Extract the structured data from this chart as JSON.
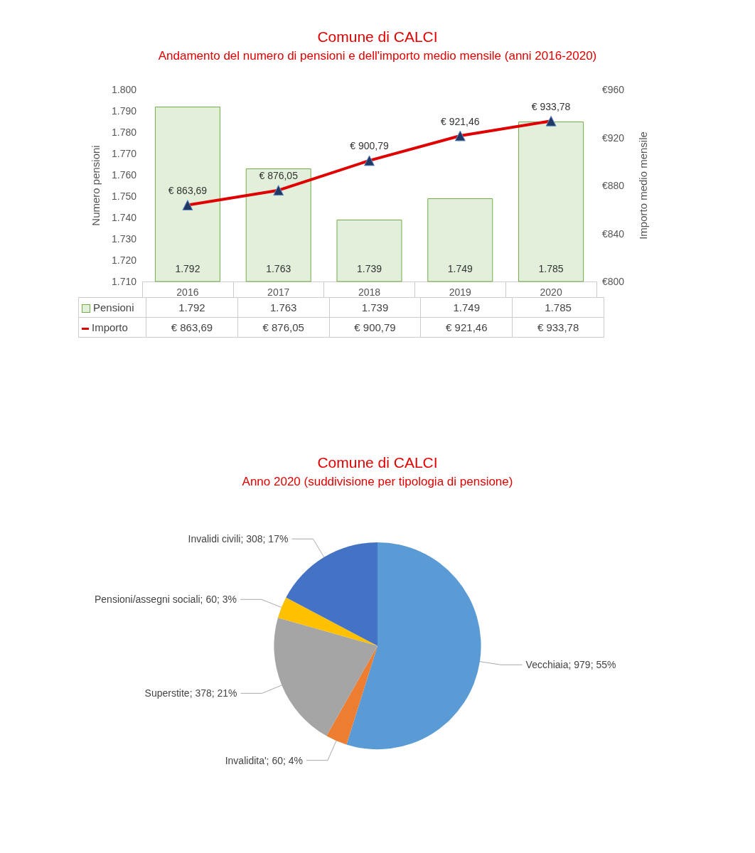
{
  "chart_data": [
    {
      "type": "bar",
      "title": "Comune di CALCI",
      "subtitle": "Andamento del numero di pensioni e dell'importo medio mensile (anni 2016-2020)",
      "ylabel": "Numero pensioni",
      "y2label": "Importo medio mensile",
      "categories": [
        "2016",
        "2017",
        "2018",
        "2019",
        "2020"
      ],
      "series": [
        {
          "name": "Pensioni",
          "type": "bar",
          "color": "#e2efda",
          "values": [
            1792,
            1763,
            1739,
            1749,
            1785
          ],
          "value_labels": [
            "1.792",
            "1.763",
            "1.739",
            "1.749",
            "1.785"
          ]
        },
        {
          "name": "Importo",
          "type": "line",
          "axis": "y2",
          "color": "#e00000",
          "marker": "triangle",
          "values": [
            863.69,
            876.05,
            900.79,
            921.46,
            933.78
          ],
          "value_labels": [
            "€ 863,69",
            "€ 876,05",
            "€ 900,79",
            "€ 921,46",
            "€ 933,78"
          ]
        }
      ],
      "ylim": [
        1710,
        1800
      ],
      "yticks": [
        {
          "value": 1710,
          "label": "1.710"
        },
        {
          "value": 1720,
          "label": "1.720"
        },
        {
          "value": 1730,
          "label": "1.730"
        },
        {
          "value": 1740,
          "label": "1.740"
        },
        {
          "value": 1750,
          "label": "1.750"
        },
        {
          "value": 1760,
          "label": "1.760"
        },
        {
          "value": 1770,
          "label": "1.770"
        },
        {
          "value": 1780,
          "label": "1.780"
        },
        {
          "value": 1790,
          "label": "1.790"
        },
        {
          "value": 1800,
          "label": "1.800"
        }
      ],
      "y2lim": [
        800,
        960
      ],
      "y2ticks": [
        {
          "value": 800,
          "label": "€800"
        },
        {
          "value": 840,
          "label": "€840"
        },
        {
          "value": 880,
          "label": "€880"
        },
        {
          "value": 920,
          "label": "€920"
        },
        {
          "value": 960,
          "label": "€960"
        }
      ],
      "grid": false,
      "legend": "bottom left"
    },
    {
      "type": "pie",
      "title": "Comune di CALCI",
      "subtitle": "Anno 2020 (suddivisione per tipologia di pensione)",
      "categories": [
        "Vecchiaia",
        "Invalidita'",
        "Superstite",
        "Pensioni/assegni sociali",
        "Invalidi civili"
      ],
      "values": [
        979,
        60,
        378,
        60,
        308
      ],
      "colors": [
        "#5b9bd5",
        "#ed7d31",
        "#a5a5a5",
        "#ffc000",
        "#4472c4"
      ],
      "value_labels": [
        "979; 55%",
        "60; 4%",
        "378; 21%",
        "60; 3%",
        "308; 17%"
      ],
      "legend": false
    }
  ]
}
